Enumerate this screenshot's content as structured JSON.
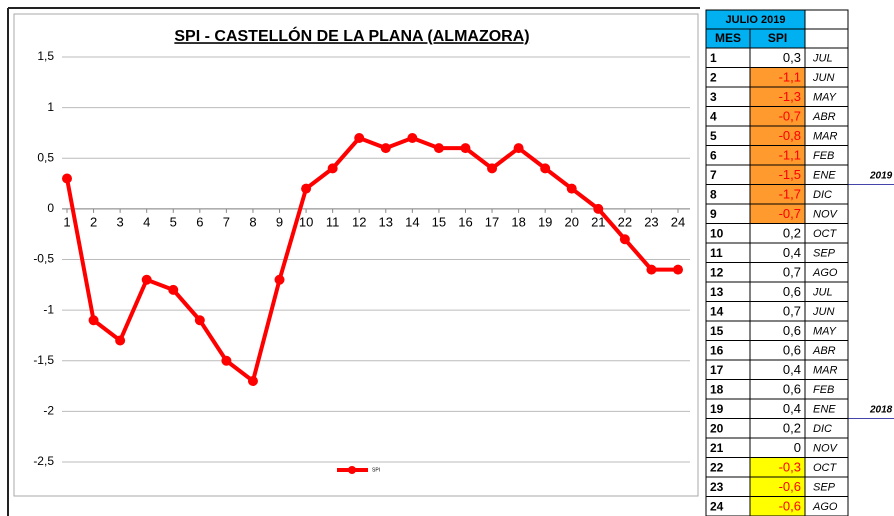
{
  "chart_data": {
    "type": "line",
    "title": "SPI - CASTELLÓN DE LA PLANA (ALMAZORA)",
    "categories": [
      1,
      2,
      3,
      4,
      5,
      6,
      7,
      8,
      9,
      10,
      11,
      12,
      13,
      14,
      15,
      16,
      17,
      18,
      19,
      20,
      21,
      22,
      23,
      24
    ],
    "series": [
      {
        "name": "SPI",
        "color": "#ff0000",
        "values": [
          0.3,
          -1.1,
          -1.3,
          -0.7,
          -0.8,
          -1.1,
          -1.5,
          -1.7,
          -0.7,
          0.2,
          0.4,
          0.7,
          0.6,
          0.7,
          0.6,
          0.6,
          0.4,
          0.6,
          0.4,
          0.2,
          0,
          -0.3,
          -0.6,
          -0.6
        ]
      }
    ],
    "ylim": [
      -2.5,
      1.5
    ],
    "yticks": [
      {
        "value": 1.5,
        "label": "1,5"
      },
      1,
      {
        "value": 0.5,
        "label": "0,5"
      },
      0,
      {
        "value": -0.5,
        "label": "-0,5"
      },
      -1,
      {
        "value": -1.5,
        "label": "-1,5"
      },
      -2,
      {
        "value": -2.5,
        "label": "-2,5"
      }
    ],
    "grid": true,
    "legend": "bottom"
  },
  "table": {
    "header": {
      "title": "JULIO 2019"
    },
    "columns": [
      "MES",
      "SPI"
    ],
    "rows": [
      {
        "mes": "1",
        "spi": "0,3",
        "month": "JUL"
      },
      {
        "mes": "2",
        "spi": "-1,1",
        "month": "JUN",
        "fill": "#ff9a2e"
      },
      {
        "mes": "3",
        "spi": "-1,3",
        "month": "MAY",
        "fill": "#ff9a2e"
      },
      {
        "mes": "4",
        "spi": "-0,7",
        "month": "ABR",
        "fill": "#ff9a2e"
      },
      {
        "mes": "5",
        "spi": "-0,8",
        "month": "MAR",
        "fill": "#ff9a2e"
      },
      {
        "mes": "6",
        "spi": "-1,1",
        "month": "FEB",
        "fill": "#ff9a2e"
      },
      {
        "mes": "7",
        "spi": "-1,5",
        "month": "ENE",
        "fill": "#ff9a2e",
        "year": "2019"
      },
      {
        "mes": "8",
        "spi": "-1,7",
        "month": "DIC",
        "fill": "#ff9a2e"
      },
      {
        "mes": "9",
        "spi": "-0,7",
        "month": "NOV",
        "fill": "#ff9a2e"
      },
      {
        "mes": "10",
        "spi": "0,2",
        "month": "OCT"
      },
      {
        "mes": "11",
        "spi": "0,4",
        "month": "SEP"
      },
      {
        "mes": "12",
        "spi": "0,7",
        "month": "AGO"
      },
      {
        "mes": "13",
        "spi": "0,6",
        "month": "JUL"
      },
      {
        "mes": "14",
        "spi": "0,7",
        "month": "JUN"
      },
      {
        "mes": "15",
        "spi": "0,6",
        "month": "MAY"
      },
      {
        "mes": "16",
        "spi": "0,6",
        "month": "ABR"
      },
      {
        "mes": "17",
        "spi": "0,4",
        "month": "MAR"
      },
      {
        "mes": "18",
        "spi": "0,6",
        "month": "FEB"
      },
      {
        "mes": "19",
        "spi": "0,4",
        "month": "ENE",
        "year": "2018"
      },
      {
        "mes": "20",
        "spi": "0,2",
        "month": "DIC"
      },
      {
        "mes": "21",
        "spi": "0",
        "month": "NOV"
      },
      {
        "mes": "22",
        "spi": "-0,3",
        "month": "OCT",
        "fill": "#ffff00"
      },
      {
        "mes": "23",
        "spi": "-0,6",
        "month": "SEP",
        "fill": "#ffff00"
      },
      {
        "mes": "24",
        "spi": "-0,6",
        "month": "AGO",
        "fill": "#ffff00"
      }
    ]
  }
}
